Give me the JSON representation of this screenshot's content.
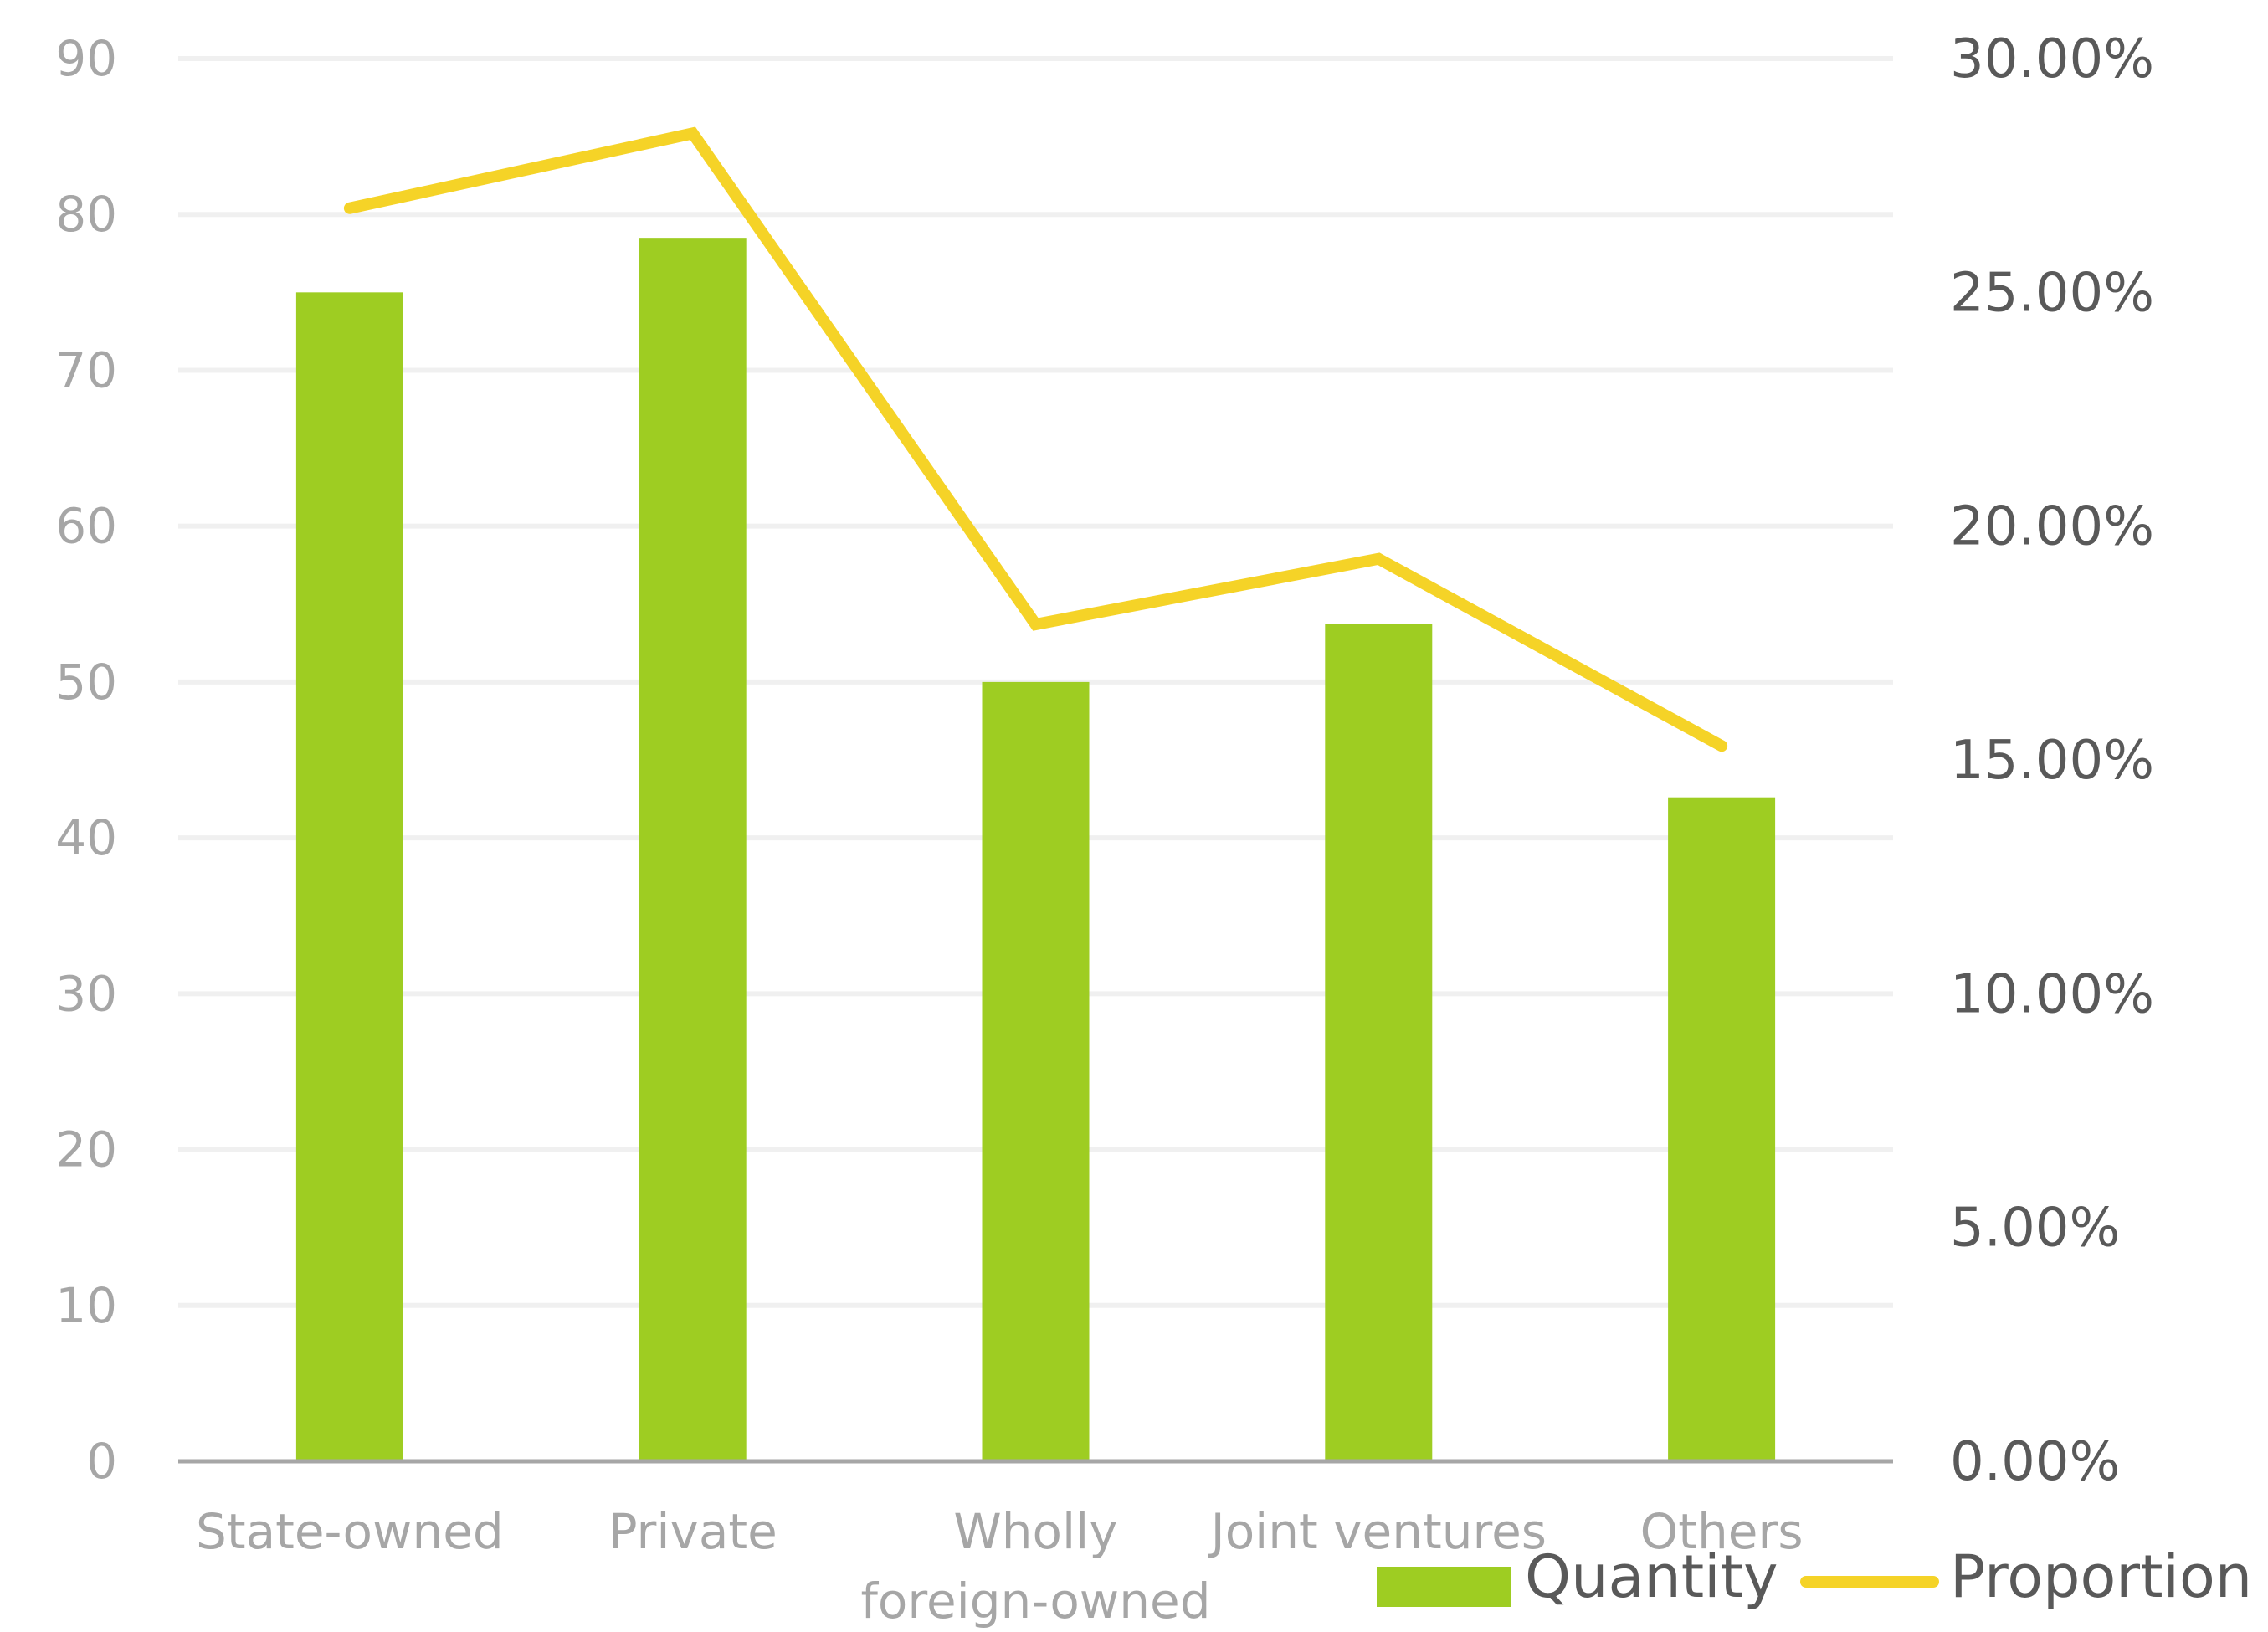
{
  "chart_data": {
    "type": "bar",
    "categories": [
      [
        "State-owned"
      ],
      [
        "Private"
      ],
      [
        "Wholly",
        "foreign-owned"
      ],
      [
        "Joint ventures"
      ],
      [
        "Others"
      ]
    ],
    "series": [
      {
        "name": "Quantity",
        "type": "bar",
        "axis": "left",
        "color": "#9ecd22",
        "values": [
          75,
          78.5,
          50,
          53.7,
          42.6
        ]
      },
      {
        "name": "Proportion",
        "type": "line",
        "axis": "right",
        "color": "#f5d327",
        "values": [
          26.8,
          28.4,
          17.9,
          19.3,
          15.3
        ]
      }
    ],
    "y_left": {
      "min": 0,
      "max": 90,
      "step": 10,
      "ticks": [
        "0",
        "10",
        "20",
        "30",
        "40",
        "50",
        "60",
        "70",
        "80",
        "90"
      ]
    },
    "y_right": {
      "min": 0,
      "max": 30,
      "step": 5,
      "ticks": [
        "0.00%",
        "5.00%",
        "10.00%",
        "15.00%",
        "20.00%",
        "25.00%",
        "30.00%"
      ]
    },
    "grid": true,
    "legend": "bottom-right",
    "gridline_color": "#f0f0f0",
    "axis_color": "#a6a6a6"
  }
}
